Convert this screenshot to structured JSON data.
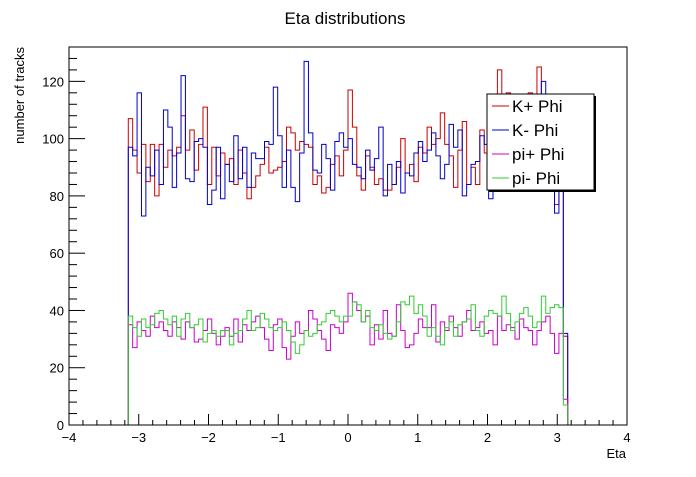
{
  "chart_data": {
    "type": "histogram",
    "title": "Eta distributions",
    "xlabel": "Eta",
    "ylabel": "number of tracks",
    "xlim": [
      -4,
      4
    ],
    "ylim": [
      0,
      132
    ],
    "xticks": [
      -4,
      -3,
      -2,
      -1,
      0,
      1,
      2,
      3,
      4
    ],
    "xtick_labels": [
      "−4",
      "−3",
      "−2",
      "−1",
      "0",
      "1",
      "2",
      "3",
      "4"
    ],
    "yticks": [
      0,
      20,
      40,
      60,
      80,
      100,
      120
    ],
    "ytick_labels": [
      "0",
      "20",
      "40",
      "60",
      "80",
      "100",
      "120"
    ],
    "grid": false,
    "legend_position": "top-right",
    "bins": {
      "start": -3.15,
      "end": 3.15,
      "count": 100
    },
    "series": [
      {
        "name": "K+ Phi",
        "color": "#cc0000",
        "values": [
          107,
          96,
          88,
          98,
          85,
          98,
          80,
          98,
          90,
          96,
          94,
          97,
          108,
          96,
          103,
          89,
          98,
          111,
          84,
          97,
          87,
          95,
          91,
          93,
          84,
          96,
          88,
          79,
          83,
          87,
          91,
          97,
          88,
          89,
          90,
          92,
          104,
          102,
          96,
          99,
          98,
          97,
          84,
          87,
          81,
          83,
          91,
          94,
          87,
          96,
          117,
          104,
          87,
          82,
          94,
          90,
          84,
          86,
          82,
          82,
          84,
          90,
          100,
          88,
          91,
          85,
          97,
          95,
          104,
          98,
          100,
          109,
          98,
          94,
          83,
          96,
          106,
          84,
          90,
          84,
          103,
          95,
          93,
          87,
          124,
          102,
          116,
          97,
          107,
          98,
          92,
          116,
          106,
          125,
          109,
          102,
          98,
          77,
          87,
          31
        ]
      },
      {
        "name": "K- Phi",
        "color": "#0000cc",
        "values": [
          97,
          94,
          116,
          73,
          90,
          87,
          96,
          84,
          110,
          104,
          83,
          95,
          122,
          86,
          85,
          99,
          100,
          97,
          77,
          82,
          97,
          79,
          91,
          85,
          101,
          86,
          97,
          83,
          95,
          93,
          93,
          99,
          98,
          118,
          101,
          83,
          96,
          83,
          78,
          95,
          127,
          102,
          89,
          88,
          98,
          93,
          82,
          99,
          102,
          97,
          100,
          91,
          90,
          86,
          96,
          89,
          93,
          104,
          80,
          91,
          84,
          92,
          81,
          88,
          87,
          95,
          99,
          92,
          96,
          102,
          94,
          86,
          91,
          105,
          97,
          103,
          80,
          84,
          91,
          92,
          101,
          98,
          79,
          94,
          96,
          90,
          86,
          88,
          87,
          87,
          100,
          102,
          82,
          89,
          120,
          88,
          96,
          74,
          92,
          32
        ]
      },
      {
        "name": "pi+ Phi",
        "color": "#cc00cc",
        "values": [
          35,
          27,
          36,
          33,
          31,
          38,
          34,
          36,
          33,
          31,
          36,
          34,
          30,
          36,
          34,
          29,
          30,
          33,
          37,
          32,
          28,
          31,
          34,
          31,
          37,
          29,
          35,
          33,
          36,
          38,
          34,
          30,
          26,
          35,
          37,
          27,
          23,
          31,
          36,
          32,
          33,
          40,
          37,
          33,
          30,
          26,
          35,
          34,
          32,
          36,
          46,
          43,
          40,
          36,
          38,
          28,
          35,
          30,
          40,
          32,
          31,
          42,
          33,
          27,
          28,
          32,
          37,
          34,
          34,
          42,
          29,
          36,
          33,
          38,
          34,
          31,
          36,
          40,
          33,
          34,
          36,
          32,
          33,
          28,
          38,
          33,
          35,
          34,
          30,
          37,
          34,
          33,
          28,
          33,
          36,
          38,
          32,
          25,
          32,
          9
        ]
      },
      {
        "name": "pi- Phi",
        "color": "#33cc33",
        "values": [
          38,
          34,
          31,
          37,
          34,
          35,
          39,
          40,
          37,
          35,
          38,
          31,
          37,
          39,
          34,
          35,
          37,
          29,
          32,
          33,
          31,
          33,
          33,
          28,
          32,
          33,
          37,
          40,
          33,
          34,
          39,
          37,
          34,
          33,
          34,
          36,
          33,
          29,
          25,
          28,
          33,
          31,
          32,
          35,
          36,
          39,
          40,
          38,
          36,
          38,
          38,
          43,
          42,
          36,
          40,
          34,
          33,
          35,
          32,
          30,
          31,
          36,
          43,
          42,
          45,
          39,
          42,
          38,
          31,
          34,
          31,
          28,
          34,
          36,
          31,
          35,
          36,
          37,
          42,
          33,
          31,
          38,
          40,
          39,
          38,
          45,
          39,
          33,
          36,
          39,
          41,
          38,
          34,
          36,
          45,
          39,
          41,
          42,
          41,
          7
        ]
      }
    ]
  }
}
